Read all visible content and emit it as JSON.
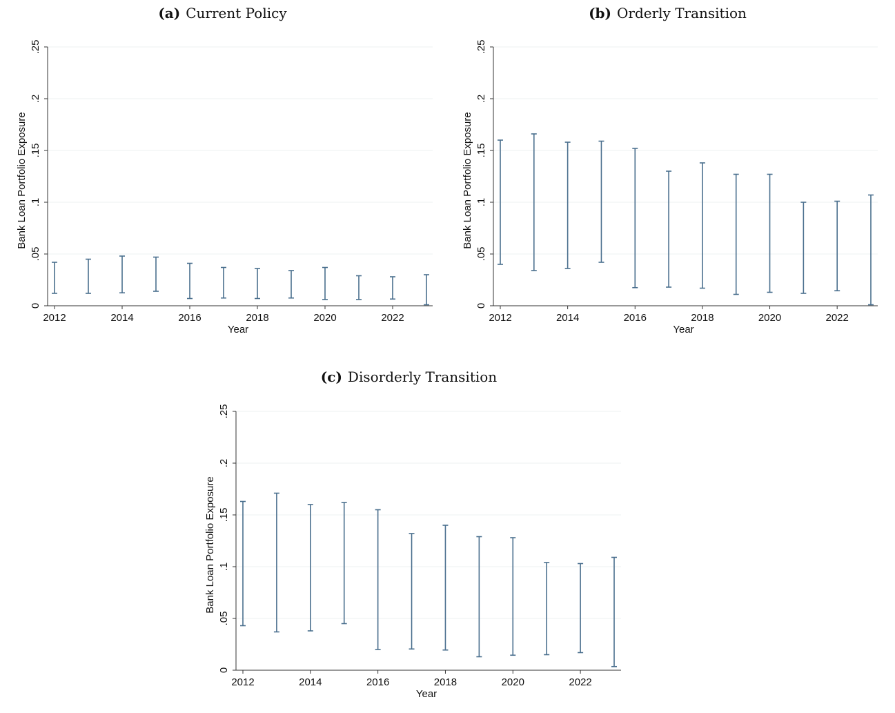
{
  "chart_data": [
    {
      "type": "errorbar",
      "panel_letter": "(a)",
      "title": "Current Policy",
      "xlabel": "Year",
      "ylabel": "Bank Loan Portfolio Exposure",
      "xlim": [
        2012,
        2023
      ],
      "ylim": [
        0,
        0.25
      ],
      "xticks": [
        2012,
        2014,
        2016,
        2018,
        2020,
        2022
      ],
      "xtick_labels": [
        "2012",
        "2014",
        "2016",
        "2018",
        "2020",
        "2022"
      ],
      "yticks": [
        0,
        0.05,
        0.1,
        0.15,
        0.2,
        0.25
      ],
      "ytick_labels": [
        "0",
        ".05",
        ".1",
        ".15",
        ".2",
        ".25"
      ],
      "grid": true,
      "x": [
        2012,
        2013,
        2014,
        2015,
        2016,
        2017,
        2018,
        2019,
        2020,
        2021,
        2022,
        2023
      ],
      "low": [
        0.012,
        0.012,
        0.0125,
        0.014,
        0.007,
        0.0075,
        0.007,
        0.0075,
        0.006,
        0.006,
        0.0065,
        0.001
      ],
      "high": [
        0.042,
        0.045,
        0.048,
        0.047,
        0.041,
        0.037,
        0.036,
        0.034,
        0.037,
        0.029,
        0.028,
        0.03
      ]
    },
    {
      "type": "errorbar",
      "panel_letter": "(b)",
      "title": "Orderly Transition",
      "xlabel": "Year",
      "ylabel": "Bank Loan Portfolio Exposure",
      "xlim": [
        2012,
        2023
      ],
      "ylim": [
        0,
        0.25
      ],
      "xticks": [
        2012,
        2014,
        2016,
        2018,
        2020,
        2022
      ],
      "xtick_labels": [
        "2012",
        "2014",
        "2016",
        "2018",
        "2020",
        "2022"
      ],
      "yticks": [
        0,
        0.05,
        0.1,
        0.15,
        0.2,
        0.25
      ],
      "ytick_labels": [
        "0",
        ".05",
        ".1",
        ".15",
        ".2",
        ".25"
      ],
      "grid": true,
      "x": [
        2012,
        2013,
        2014,
        2015,
        2016,
        2017,
        2018,
        2019,
        2020,
        2021,
        2022,
        2023
      ],
      "low": [
        0.04,
        0.034,
        0.036,
        0.042,
        0.0175,
        0.018,
        0.017,
        0.011,
        0.013,
        0.012,
        0.0145,
        0.001
      ],
      "high": [
        0.16,
        0.166,
        0.158,
        0.159,
        0.152,
        0.13,
        0.138,
        0.127,
        0.127,
        0.1,
        0.101,
        0.107
      ]
    },
    {
      "type": "errorbar",
      "panel_letter": "(c)",
      "title": "Disorderly Transition",
      "xlabel": "Year",
      "ylabel": "Bank Loan Portfolio Exposure",
      "xlim": [
        2012,
        2023
      ],
      "ylim": [
        0,
        0.25
      ],
      "xticks": [
        2012,
        2014,
        2016,
        2018,
        2020,
        2022
      ],
      "xtick_labels": [
        "2012",
        "2014",
        "2016",
        "2018",
        "2020",
        "2022"
      ],
      "yticks": [
        0,
        0.05,
        0.1,
        0.15,
        0.2,
        0.25
      ],
      "ytick_labels": [
        "0",
        ".05",
        ".1",
        ".15",
        ".2",
        ".25"
      ],
      "grid": true,
      "x": [
        2012,
        2013,
        2014,
        2015,
        2016,
        2017,
        2018,
        2019,
        2020,
        2021,
        2022,
        2023
      ],
      "low": [
        0.043,
        0.037,
        0.038,
        0.045,
        0.02,
        0.0205,
        0.0195,
        0.013,
        0.0145,
        0.015,
        0.017,
        0.0035
      ],
      "high": [
        0.163,
        0.171,
        0.16,
        0.162,
        0.155,
        0.132,
        0.14,
        0.129,
        0.128,
        0.104,
        0.103,
        0.109
      ]
    }
  ],
  "colors": {
    "bar": "#4a6f8e",
    "axis": "#333333",
    "grid": "#eef0f2"
  }
}
